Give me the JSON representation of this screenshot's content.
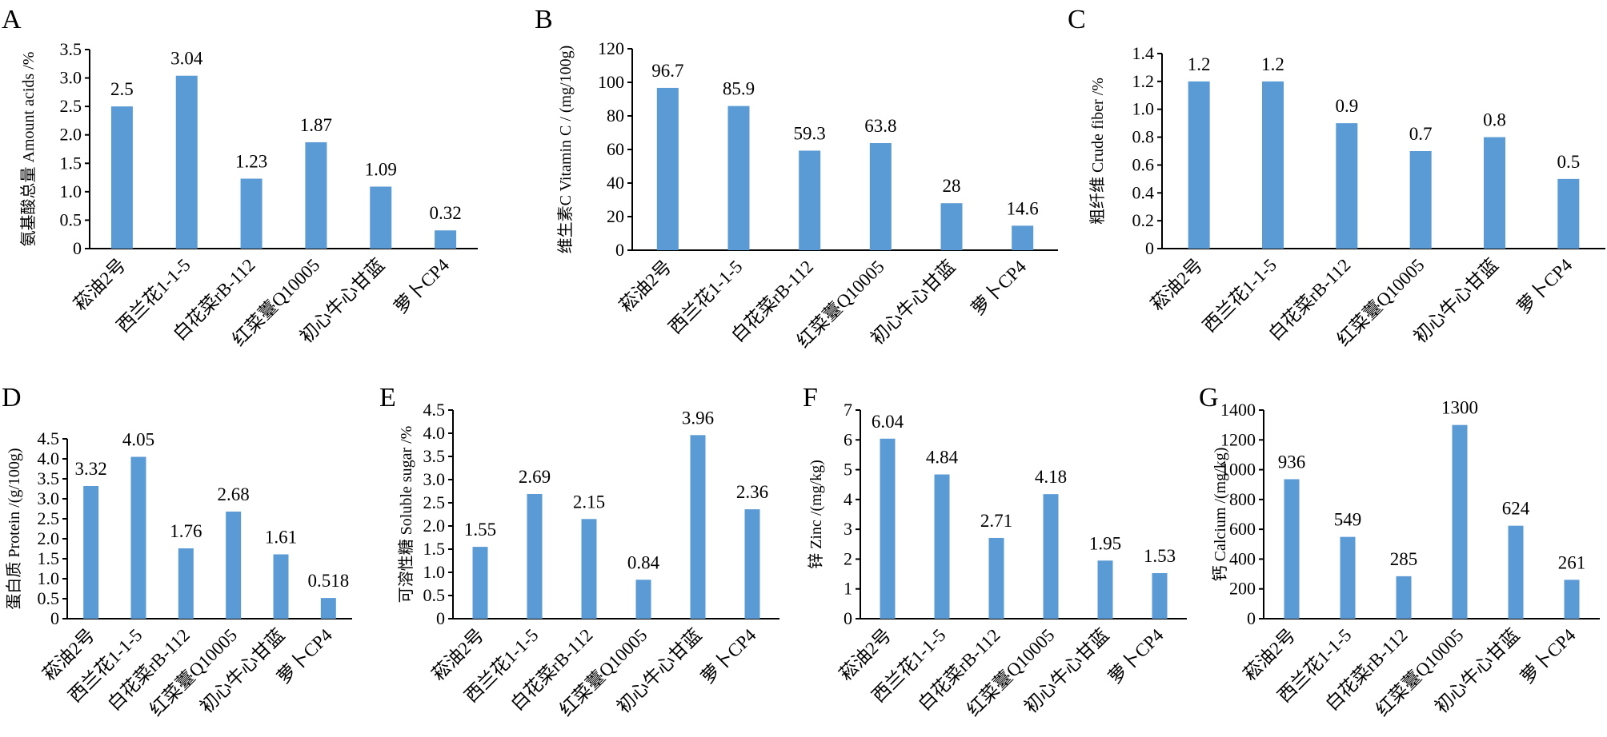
{
  "colors": {
    "bar": "#5b9bd5",
    "axis": "#000000"
  },
  "chart_data": [
    {
      "type": "bar",
      "panel": "A",
      "ylabel": "氨基酸总量 Amount acids /%",
      "ylim": [
        0,
        3.5
      ],
      "yticks": [
        "0",
        "0.5",
        "1.0",
        "1.5",
        "2.0",
        "2.5",
        "3.0",
        "3.5"
      ],
      "categories": [
        "菘油2号",
        "西兰花1-1-5",
        "白花菜rB-112",
        "红菜薹Q10005",
        "初心牛心甘蓝",
        "萝卜CP4"
      ],
      "values": [
        2.5,
        3.04,
        1.23,
        1.87,
        1.09,
        0.32
      ],
      "value_labels": [
        "2.5",
        "3.04",
        "1.23",
        "1.87",
        "1.09",
        "0.32"
      ]
    },
    {
      "type": "bar",
      "panel": "B",
      "ylabel": "维生素C Vitamin C / (mg/100g)",
      "ylim": [
        0,
        120
      ],
      "yticks": [
        "0",
        "20",
        "40",
        "60",
        "80",
        "100",
        "120"
      ],
      "categories": [
        "菘油2号",
        "西兰花1-1-5",
        "白花菜rB-112",
        "红菜薹Q10005",
        "初心牛心甘蓝",
        "萝卜CP4"
      ],
      "values": [
        96.7,
        85.9,
        59.3,
        63.8,
        28,
        14.6
      ],
      "value_labels": [
        "96.7",
        "85.9",
        "59.3",
        "63.8",
        "28",
        "14.6"
      ]
    },
    {
      "type": "bar",
      "panel": "C",
      "ylabel": "粗纤维 Crude fiber /%",
      "ylim": [
        0,
        1.4
      ],
      "yticks": [
        "0",
        "0.2",
        "0.4",
        "0.6",
        "0.8",
        "1.0",
        "1.2",
        "1.4"
      ],
      "categories": [
        "菘油2号",
        "西兰花1-1-5",
        "白花菜rB-112",
        "红菜薹Q10005",
        "初心牛心甘蓝",
        "萝卜CP4"
      ],
      "values": [
        1.2,
        1.2,
        0.9,
        0.7,
        0.8,
        0.5
      ],
      "value_labels": [
        "1.2",
        "1.2",
        "0.9",
        "0.7",
        "0.8",
        "0.5"
      ]
    },
    {
      "type": "bar",
      "panel": "D",
      "ylabel": "蛋白质 Protein /(g/100g)",
      "ylim": [
        0,
        4.5
      ],
      "yticks": [
        "0",
        "0.5",
        "1.0",
        "1.5",
        "2.0",
        "2.5",
        "3.0",
        "3.5",
        "4.0",
        "4.5"
      ],
      "categories": [
        "菘油2号",
        "西兰花1-1-5",
        "白花菜rB-112",
        "红菜薹Q10005",
        "初心牛心甘蓝",
        "萝卜CP4"
      ],
      "values": [
        3.32,
        4.05,
        1.76,
        2.68,
        1.61,
        0.518
      ],
      "value_labels": [
        "3.32",
        "4.05",
        "1.76",
        "2.68",
        "1.61",
        "0.518"
      ]
    },
    {
      "type": "bar",
      "panel": "E",
      "ylabel": "可溶性糖 Soluble sugar /%",
      "ylim": [
        0,
        4.5
      ],
      "yticks": [
        "0",
        "0.5",
        "1.0",
        "1.5",
        "2.0",
        "2.5",
        "3.0",
        "3.5",
        "4.0",
        "4.5"
      ],
      "categories": [
        "菘油2号",
        "西兰花1-1-5",
        "白花菜rB-112",
        "红菜薹Q10005",
        "初心牛心甘蓝",
        "萝卜CP4"
      ],
      "values": [
        1.55,
        2.69,
        2.15,
        0.84,
        3.96,
        2.36
      ],
      "value_labels": [
        "1.55",
        "2.69",
        "2.15",
        "0.84",
        "3.96",
        "2.36"
      ]
    },
    {
      "type": "bar",
      "panel": "F",
      "ylabel": "锌 Zinc /(mg/kg)",
      "ylim": [
        0,
        7
      ],
      "yticks": [
        "0",
        "1",
        "2",
        "3",
        "4",
        "5",
        "6",
        "7"
      ],
      "categories": [
        "菘油2号",
        "西兰花1-1-5",
        "白花菜rB-112",
        "红菜薹Q10005",
        "初心牛心甘蓝",
        "萝卜CP4"
      ],
      "values": [
        6.04,
        4.84,
        2.71,
        4.18,
        1.95,
        1.53
      ],
      "value_labels": [
        "6.04",
        "4.84",
        "2.71",
        "4.18",
        "1.95",
        "1.53"
      ]
    },
    {
      "type": "bar",
      "panel": "G",
      "ylabel": "钙 Calcium /(mg/kg)",
      "ylim": [
        0,
        1400
      ],
      "yticks": [
        "0",
        "200",
        "400",
        "600",
        "800",
        "1000",
        "1200",
        "1400"
      ],
      "categories": [
        "菘油2号",
        "西兰花1-1-5",
        "白花菜rB-112",
        "红菜薹Q10005",
        "初心牛心甘蓝",
        "萝卜CP4"
      ],
      "values": [
        936,
        549,
        285,
        1300,
        624,
        261
      ],
      "value_labels": [
        "936",
        "549",
        "285",
        "1300",
        "624",
        "261"
      ]
    }
  ]
}
